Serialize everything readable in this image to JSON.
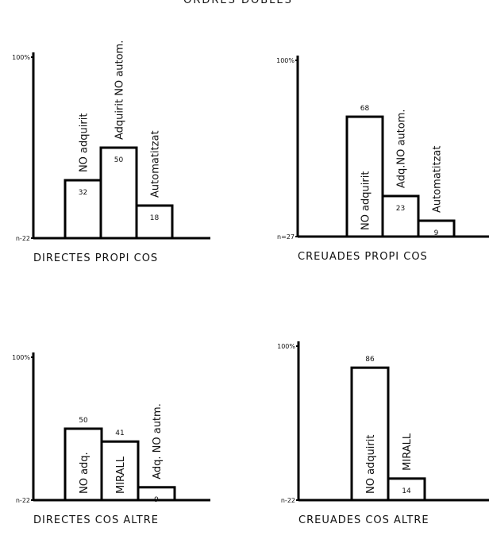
{
  "title": "ORDRES DOBLES",
  "chart_data": [
    {
      "type": "bar",
      "xlabel": "DIRECTES PROPI COS",
      "categories": [
        "NO adquirit",
        "Adquirit NO autom.",
        "Automatitzat"
      ],
      "values": [
        32,
        50,
        18
      ],
      "ylim": [
        0,
        100
      ],
      "yticks": [
        {
          "value": 0,
          "label": "n-22"
        },
        {
          "value": 100,
          "label": "100%"
        }
      ]
    },
    {
      "type": "bar",
      "xlabel": "CREUADES PROPI COS",
      "categories": [
        "NO adquirit",
        "Adq.NO autom.",
        "Automatitzat"
      ],
      "values": [
        68,
        23,
        9
      ],
      "ylim": [
        0,
        100
      ],
      "yticks": [
        {
          "value": 0,
          "label": "n=27"
        },
        {
          "value": 100,
          "label": "100%"
        }
      ]
    },
    {
      "type": "bar",
      "xlabel": "DIRECTES COS ALTRE",
      "categories": [
        "NO adq.",
        "MIRALL",
        "Adq. NO autm."
      ],
      "values": [
        50,
        41,
        9
      ],
      "ylim": [
        0,
        100
      ],
      "yticks": [
        {
          "value": 0,
          "label": "n-22"
        },
        {
          "value": 100,
          "label": "100%"
        }
      ]
    },
    {
      "type": "bar",
      "xlabel": "CREUADES COS ALTRE",
      "categories": [
        "NO adquirit",
        "MIRALL"
      ],
      "values": [
        86,
        14
      ],
      "ylim": [
        0,
        100
      ],
      "yticks": [
        {
          "value": 0,
          "label": "n-22"
        },
        {
          "value": 100,
          "label": "100%"
        }
      ]
    }
  ]
}
